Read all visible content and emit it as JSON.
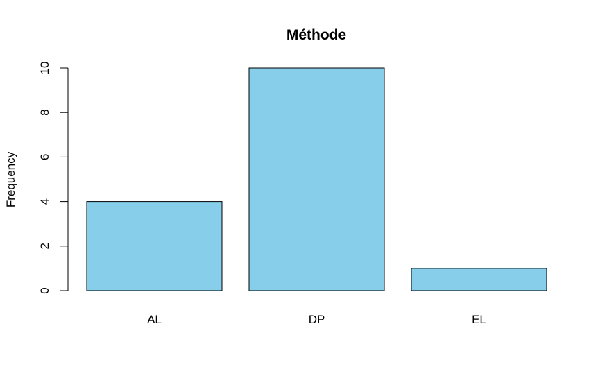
{
  "chart_data": {
    "type": "bar",
    "title": "Méthode",
    "xlabel": "",
    "ylabel": "Frequency",
    "categories": [
      "AL",
      "DP",
      "EL"
    ],
    "values": [
      4,
      10,
      1
    ],
    "ylim": [
      0,
      10
    ],
    "yticks": [
      0,
      2,
      4,
      6,
      8,
      10
    ],
    "grid": false,
    "bar_color": "#87CEEB",
    "border_color": "#000000"
  }
}
